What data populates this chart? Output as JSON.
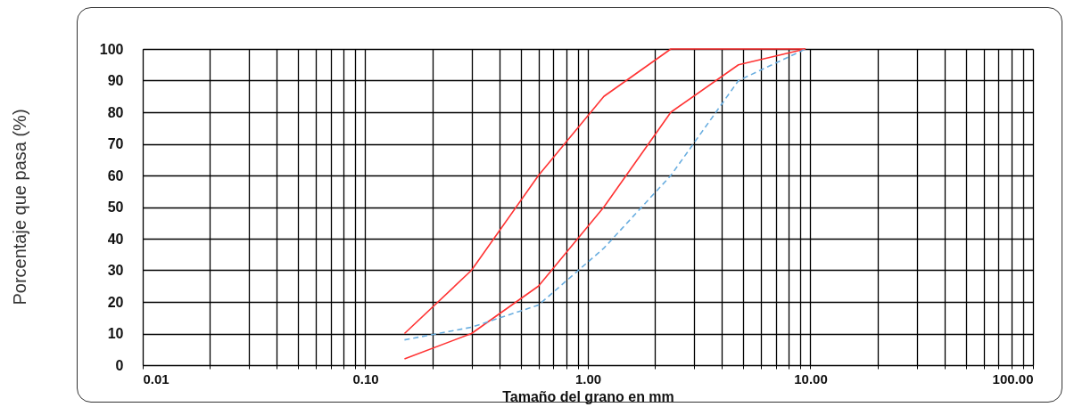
{
  "chart_data": {
    "type": "line",
    "xlabel": "Tamaño del grano en mm",
    "ylabel": "Porcentaje que pasa (%)",
    "log": "x",
    "grid": true,
    "xlim": [
      0.01,
      100
    ],
    "ylim": [
      0,
      100
    ],
    "xticks": [
      {
        "value": 0.01,
        "label": "0.01"
      },
      {
        "value": 0.02,
        "label": null
      },
      {
        "value": 0.03,
        "label": null
      },
      {
        "value": 0.04,
        "label": null
      },
      {
        "value": 0.05,
        "label": null
      },
      {
        "value": 0.06,
        "label": null
      },
      {
        "value": 0.07,
        "label": null
      },
      {
        "value": 0.08,
        "label": null
      },
      {
        "value": 0.09,
        "label": null
      },
      {
        "value": 0.1,
        "label": "0.10"
      },
      {
        "value": 0.2,
        "label": null
      },
      {
        "value": 0.3,
        "label": null
      },
      {
        "value": 0.4,
        "label": null
      },
      {
        "value": 0.5,
        "label": null
      },
      {
        "value": 0.6,
        "label": null
      },
      {
        "value": 0.7,
        "label": null
      },
      {
        "value": 0.8,
        "label": null
      },
      {
        "value": 0.9,
        "label": null
      },
      {
        "value": 1,
        "label": "1.00"
      },
      {
        "value": 2,
        "label": null
      },
      {
        "value": 3,
        "label": null
      },
      {
        "value": 4,
        "label": null
      },
      {
        "value": 5,
        "label": null
      },
      {
        "value": 6,
        "label": null
      },
      {
        "value": 7,
        "label": null
      },
      {
        "value": 8,
        "label": null
      },
      {
        "value": 9,
        "label": null
      },
      {
        "value": 10,
        "label": "10.00"
      },
      {
        "value": 20,
        "label": null
      },
      {
        "value": 30,
        "label": null
      },
      {
        "value": 40,
        "label": null
      },
      {
        "value": 50,
        "label": null
      },
      {
        "value": 60,
        "label": null
      },
      {
        "value": 70,
        "label": null
      },
      {
        "value": 80,
        "label": null
      },
      {
        "value": 90,
        "label": null
      },
      {
        "value": 100,
        "label": "100.00"
      }
    ],
    "yticks": [
      0,
      10,
      20,
      30,
      40,
      50,
      60,
      70,
      80,
      90,
      100
    ],
    "x": [
      0.15,
      0.3,
      0.6,
      1.18,
      2.36,
      4.75,
      9.5
    ],
    "series": [
      {
        "color": "#ff3333",
        "line_style": "solid",
        "values": [
          10,
          30,
          60,
          85,
          100,
          100,
          100
        ]
      },
      {
        "color": "#ff3333",
        "line_style": "solid",
        "values": [
          2,
          10,
          25,
          50,
          80,
          95,
          100
        ]
      },
      {
        "color": "#6aaee0",
        "line_style": "dashed",
        "values": [
          8,
          12,
          19,
          37,
          60,
          90,
          100
        ]
      }
    ]
  }
}
